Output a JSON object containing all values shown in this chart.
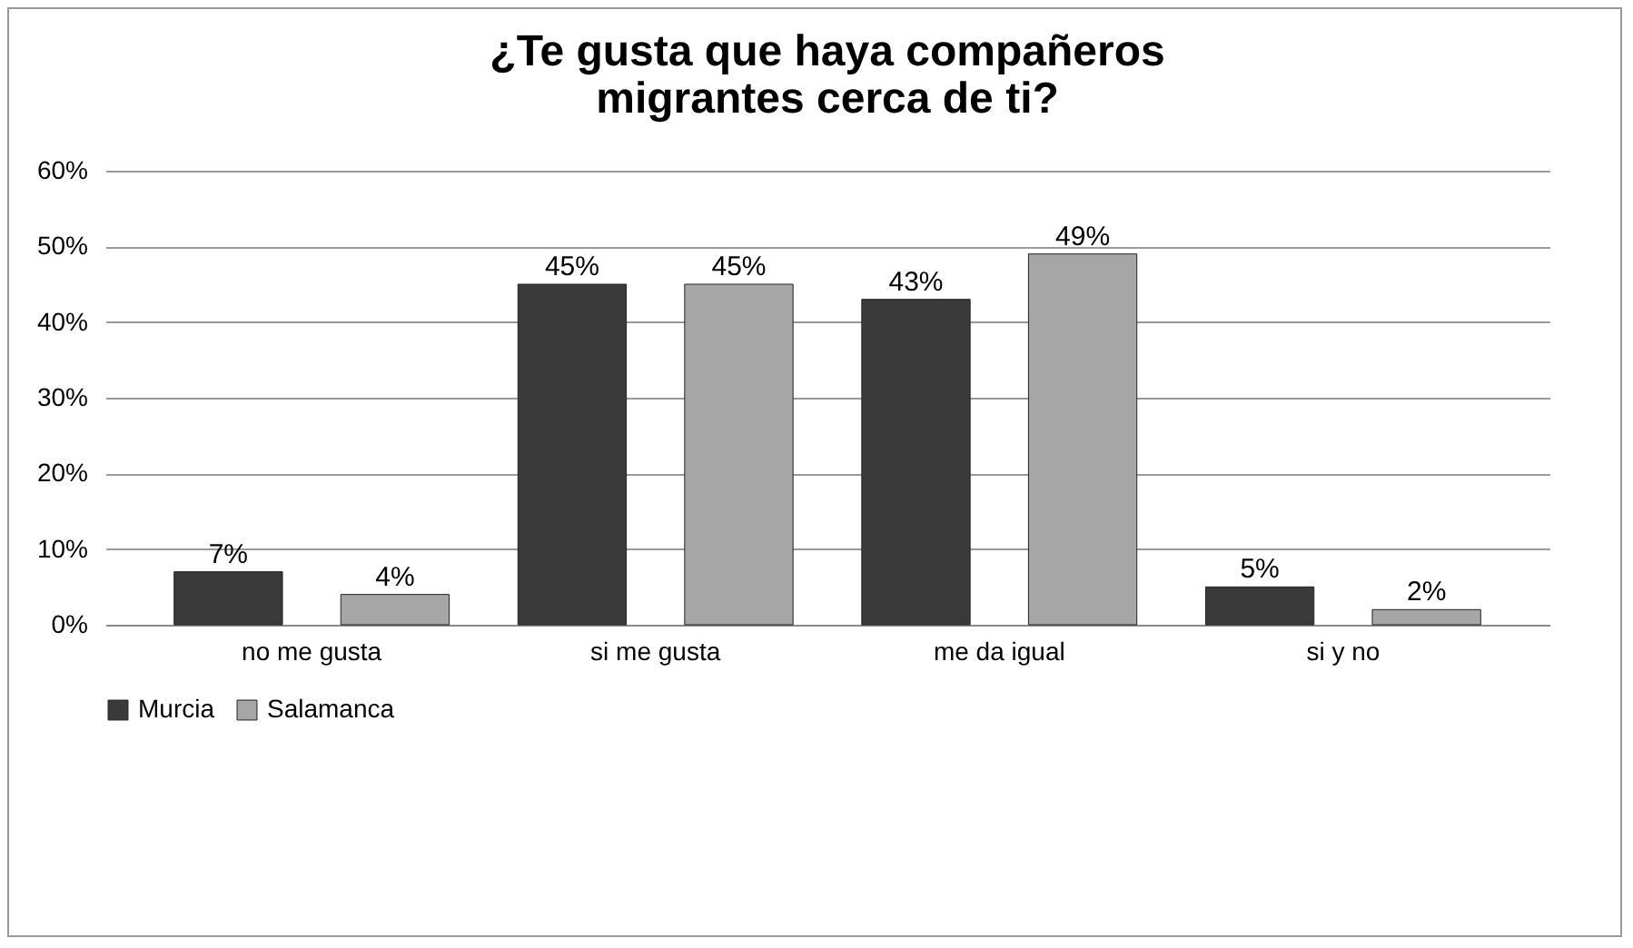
{
  "chart_data": {
    "type": "bar",
    "title": "¿Te gusta que haya compañeros migrantes cerca de ti?",
    "categories": [
      "no me gusta",
      "si me gusta",
      "me da igual",
      "si y no"
    ],
    "series": [
      {
        "name": "Murcia",
        "color": "#3a3a3a",
        "values": [
          7,
          45,
          43,
          5
        ],
        "value_labels": [
          "7%",
          "45%",
          "43%",
          "5%"
        ]
      },
      {
        "name": "Salamanca",
        "color": "#a6a6a6",
        "values": [
          4,
          45,
          49,
          2
        ],
        "value_labels": [
          "4%",
          "45%",
          "49%",
          "2%"
        ]
      }
    ],
    "ylim": [
      0,
      60
    ],
    "yticks": [
      {
        "value": 0,
        "label": "0%"
      },
      {
        "value": 10,
        "label": "10%"
      },
      {
        "value": 20,
        "label": "20%"
      },
      {
        "value": 30,
        "label": "30%"
      },
      {
        "value": 40,
        "label": "40%"
      },
      {
        "value": 50,
        "label": "50%"
      },
      {
        "value": 60,
        "label": "60%"
      }
    ],
    "grid": "y",
    "legend": "bottom"
  }
}
